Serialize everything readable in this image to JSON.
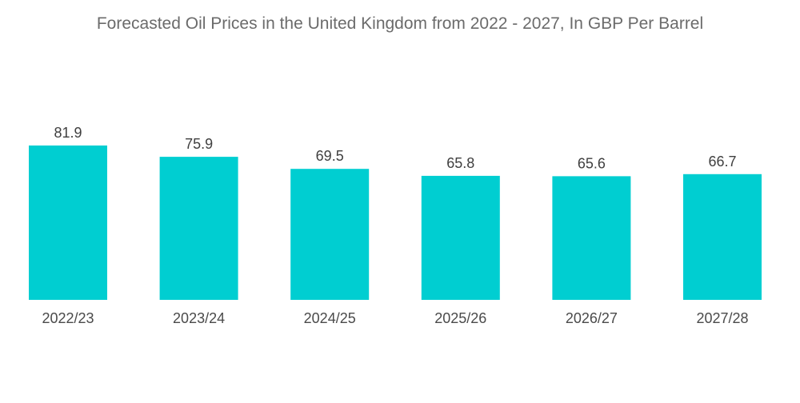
{
  "chart_data": {
    "type": "bar",
    "title": "Forecasted Oil Prices in the United Kingdom from 2022 - 2027, In GBP Per Barrel",
    "categories": [
      "2022/23",
      "2023/24",
      "2024/25",
      "2025/26",
      "2026/27",
      "2027/28"
    ],
    "values": [
      81.9,
      75.9,
      69.5,
      65.8,
      65.6,
      66.7
    ],
    "xlabel": "",
    "ylabel": "",
    "ylim": [
      0,
      100
    ],
    "grid": false,
    "legend": "none",
    "bar_color": "#00ced1",
    "data_labels": true
  }
}
